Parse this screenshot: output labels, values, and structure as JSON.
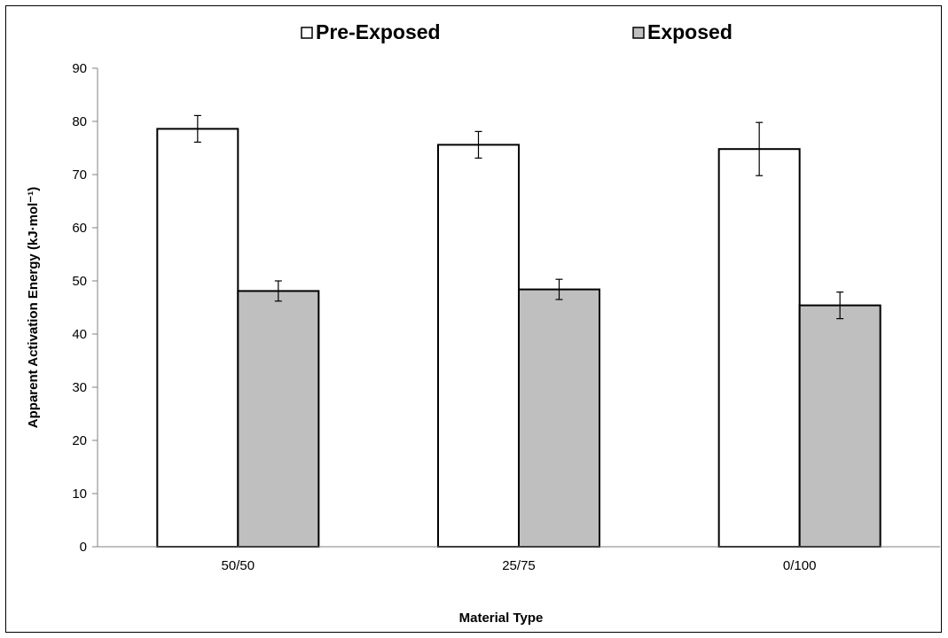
{
  "chart_data": {
    "type": "bar",
    "categories": [
      "50/50",
      "25/75",
      "0/100"
    ],
    "series": [
      {
        "name": "Pre-Exposed",
        "values": [
          78.6,
          75.6,
          74.8
        ],
        "errors": [
          2.5,
          2.5,
          5.0
        ],
        "color": "#ffffff"
      },
      {
        "name": "Exposed",
        "values": [
          48.1,
          48.4,
          45.4
        ],
        "errors": [
          1.9,
          1.9,
          2.5
        ],
        "color": "#bfbfbf"
      }
    ],
    "title": "",
    "xlabel": "Material Type",
    "ylabel": "Apparent Activation Energy (kJ·mol⁻¹)",
    "ylim": [
      0,
      90
    ],
    "yticks": [
      0,
      10,
      20,
      30,
      40,
      50,
      60,
      70,
      80,
      90
    ],
    "grid": false,
    "legend_position": "top-center",
    "bar_outline_color": "#000000"
  }
}
